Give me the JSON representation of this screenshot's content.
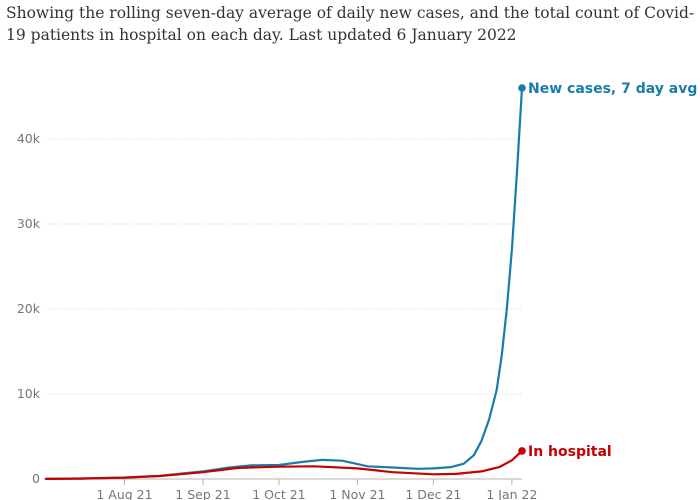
{
  "subtitle": "Showing the rolling seven-day average of daily new cases, and the total count of Covid-19 patients in hospital on each day. Last updated 6 January 2022",
  "chart_data": {
    "type": "line",
    "ylim": [
      0,
      46000
    ],
    "y_ticks": [
      {
        "value": 0,
        "label": "0"
      },
      {
        "value": 10000,
        "label": "10k"
      },
      {
        "value": 20000,
        "label": "20k"
      },
      {
        "value": 30000,
        "label": "30k"
      },
      {
        "value": 40000,
        "label": "40k"
      }
    ],
    "x_ticks": [
      {
        "date": "2021-08-01",
        "label": "1 Aug 21"
      },
      {
        "date": "2021-09-01",
        "label": "1 Sep 21"
      },
      {
        "date": "2021-10-01",
        "label": "1 Oct 21"
      },
      {
        "date": "2021-11-01",
        "label": "1 Nov 21"
      },
      {
        "date": "2021-12-01",
        "label": "1 Dec 21"
      },
      {
        "date": "2022-01-01",
        "label": "1 Jan 22"
      }
    ],
    "xlim": [
      "2021-07-01",
      "2022-01-05"
    ],
    "grid": true,
    "series": [
      {
        "name": "New cases, 7 day avg",
        "color": "#197caa",
        "points": [
          [
            "2021-07-01",
            20
          ],
          [
            "2021-07-15",
            60
          ],
          [
            "2021-08-01",
            180
          ],
          [
            "2021-08-15",
            380
          ],
          [
            "2021-09-01",
            900
          ],
          [
            "2021-09-10",
            1300
          ],
          [
            "2021-09-20",
            1600
          ],
          [
            "2021-10-01",
            1650
          ],
          [
            "2021-10-10",
            2000
          ],
          [
            "2021-10-18",
            2250
          ],
          [
            "2021-10-26",
            2150
          ],
          [
            "2021-11-05",
            1500
          ],
          [
            "2021-11-15",
            1350
          ],
          [
            "2021-11-25",
            1200
          ],
          [
            "2021-12-01",
            1250
          ],
          [
            "2021-12-08",
            1400
          ],
          [
            "2021-12-13",
            1800
          ],
          [
            "2021-12-17",
            2800
          ],
          [
            "2021-12-20",
            4500
          ],
          [
            "2021-12-23",
            7000
          ],
          [
            "2021-12-26",
            10500
          ],
          [
            "2021-12-28",
            14500
          ],
          [
            "2021-12-30",
            20000
          ],
          [
            "2022-01-01",
            27000
          ],
          [
            "2022-01-03",
            36000
          ],
          [
            "2022-01-05",
            46000
          ]
        ],
        "end_label": "New cases, 7 day avg"
      },
      {
        "name": "In hospital",
        "color": "#c70000",
        "points": [
          [
            "2021-07-01",
            10
          ],
          [
            "2021-07-15",
            50
          ],
          [
            "2021-08-01",
            150
          ],
          [
            "2021-08-15",
            350
          ],
          [
            "2021-09-01",
            800
          ],
          [
            "2021-09-15",
            1300
          ],
          [
            "2021-10-01",
            1450
          ],
          [
            "2021-10-15",
            1500
          ],
          [
            "2021-11-01",
            1250
          ],
          [
            "2021-11-15",
            800
          ],
          [
            "2021-12-01",
            550
          ],
          [
            "2021-12-10",
            600
          ],
          [
            "2021-12-20",
            900
          ],
          [
            "2021-12-27",
            1400
          ],
          [
            "2022-01-01",
            2200
          ],
          [
            "2022-01-05",
            3300
          ]
        ],
        "end_label": "In hospital"
      }
    ]
  }
}
